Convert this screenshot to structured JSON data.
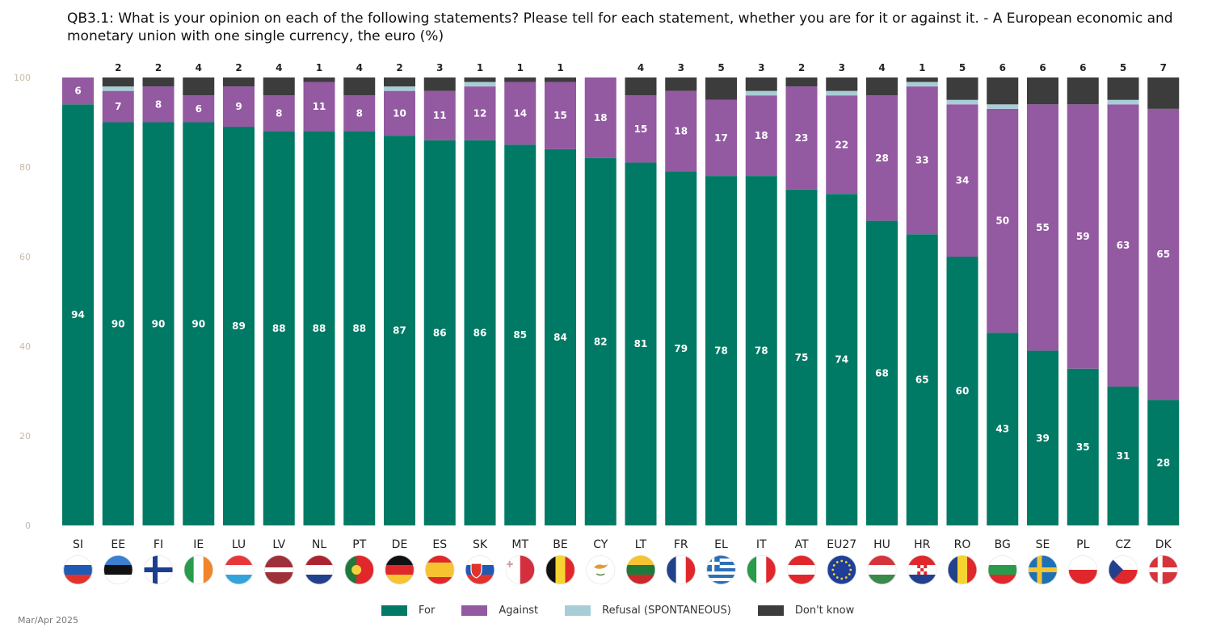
{
  "title": "QB3.1: What is your opinion on each of the following statements? Please tell for each statement, whether you are for it or against it. - A European economic and monetary union with one single currency, the euro (%)",
  "source": "Mar/Apr 2025",
  "chart_data": {
    "type": "bar",
    "stacked": true,
    "title": "QB3.1: What is your opinion on each of the following statements? Please tell for each statement, whether you are for it or against it. - A European economic and monetary union with one single currency, the euro (%)",
    "ylim": [
      0,
      100
    ],
    "yticks": [
      0,
      20,
      40,
      60,
      80,
      100
    ],
    "grid": false,
    "legend_position": "bottom",
    "categories": [
      "SI",
      "EE",
      "FI",
      "IE",
      "LU",
      "LV",
      "NL",
      "PT",
      "DE",
      "ES",
      "SK",
      "MT",
      "BE",
      "CY",
      "LT",
      "FR",
      "EL",
      "IT",
      "AT",
      "EU27",
      "HU",
      "HR",
      "RO",
      "BG",
      "SE",
      "PL",
      "CZ",
      "DK"
    ],
    "series": [
      {
        "name": "For",
        "color": "#007a64",
        "values": [
          94,
          90,
          90,
          90,
          89,
          88,
          88,
          88,
          87,
          86,
          86,
          85,
          84,
          82,
          81,
          79,
          78,
          78,
          75,
          74,
          68,
          65,
          60,
          43,
          39,
          35,
          31,
          28
        ]
      },
      {
        "name": "Against",
        "color": "#9359a1",
        "values": [
          6,
          7,
          8,
          6,
          9,
          8,
          11,
          8,
          10,
          11,
          12,
          14,
          15,
          18,
          15,
          18,
          17,
          18,
          23,
          22,
          28,
          33,
          34,
          50,
          55,
          59,
          63,
          65
        ]
      },
      {
        "name": "Refusal (SPONTANEOUS)",
        "color": "#a7ced6",
        "values": [
          0,
          1,
          0,
          0,
          0,
          0,
          0,
          0,
          1,
          0,
          1,
          0,
          0,
          0,
          0,
          0,
          0,
          1,
          0,
          1,
          0,
          1,
          1,
          1,
          0,
          0,
          1,
          0
        ]
      },
      {
        "name": "Don't know",
        "color": "#3c3c3c",
        "values": [
          0,
          2,
          2,
          4,
          2,
          4,
          1,
          4,
          2,
          3,
          1,
          1,
          1,
          0,
          4,
          3,
          5,
          3,
          2,
          3,
          4,
          1,
          5,
          6,
          6,
          6,
          5,
          7
        ]
      }
    ],
    "flag_icons": [
      "slovenia-flag-icon",
      "estonia-flag-icon",
      "finland-flag-icon",
      "ireland-flag-icon",
      "luxembourg-flag-icon",
      "latvia-flag-icon",
      "netherlands-flag-icon",
      "portugal-flag-icon",
      "germany-flag-icon",
      "spain-flag-icon",
      "slovakia-flag-icon",
      "malta-flag-icon",
      "belgium-flag-icon",
      "cyprus-flag-icon",
      "lithuania-flag-icon",
      "france-flag-icon",
      "greece-flag-icon",
      "italy-flag-icon",
      "austria-flag-icon",
      "eu-flag-icon",
      "hungary-flag-icon",
      "croatia-flag-icon",
      "romania-flag-icon",
      "bulgaria-flag-icon",
      "sweden-flag-icon",
      "poland-flag-icon",
      "czechia-flag-icon",
      "denmark-flag-icon"
    ]
  }
}
